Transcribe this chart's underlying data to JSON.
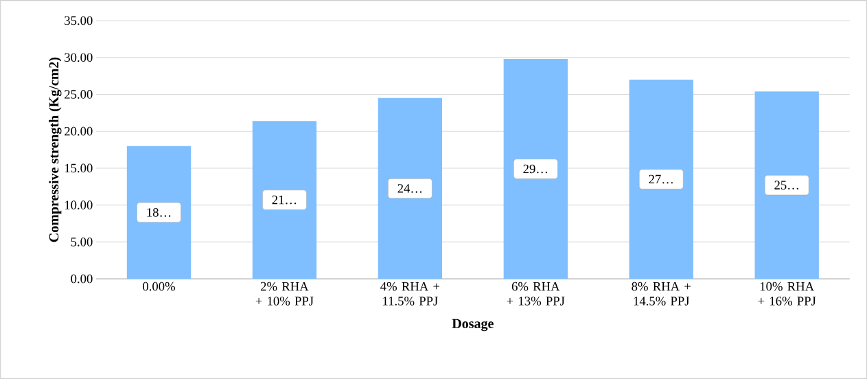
{
  "chart_data": {
    "type": "bar",
    "xlabel": "Dosage",
    "ylabel": "Compressive strength (Kg/cm2)",
    "categories": [
      "0.00%",
      "2% RHA + 10% PPJ",
      "4% RHA + 11.5% PPJ",
      "6% RHA + 13% PPJ",
      "8% RHA + 14.5% PPJ",
      "10% RHA + 16% PPJ"
    ],
    "values": [
      18.0,
      21.4,
      24.5,
      29.8,
      27.0,
      25.4
    ],
    "value_labels": [
      "18…",
      "21…",
      "24…",
      "29…",
      "27…",
      "25…"
    ],
    "color": "#7fbfff",
    "ylim": [
      0,
      35
    ],
    "yticks": [
      {
        "value": 0,
        "label": "0.00"
      },
      {
        "value": 5,
        "label": "5.00"
      },
      {
        "value": 10,
        "label": "10.00"
      },
      {
        "value": 15,
        "label": "15.00"
      },
      {
        "value": 20,
        "label": "20.00"
      },
      {
        "value": 25,
        "label": "25.00"
      },
      {
        "value": 30,
        "label": "30.00"
      },
      {
        "value": 35,
        "label": "35.00"
      }
    ],
    "grid": "y"
  }
}
